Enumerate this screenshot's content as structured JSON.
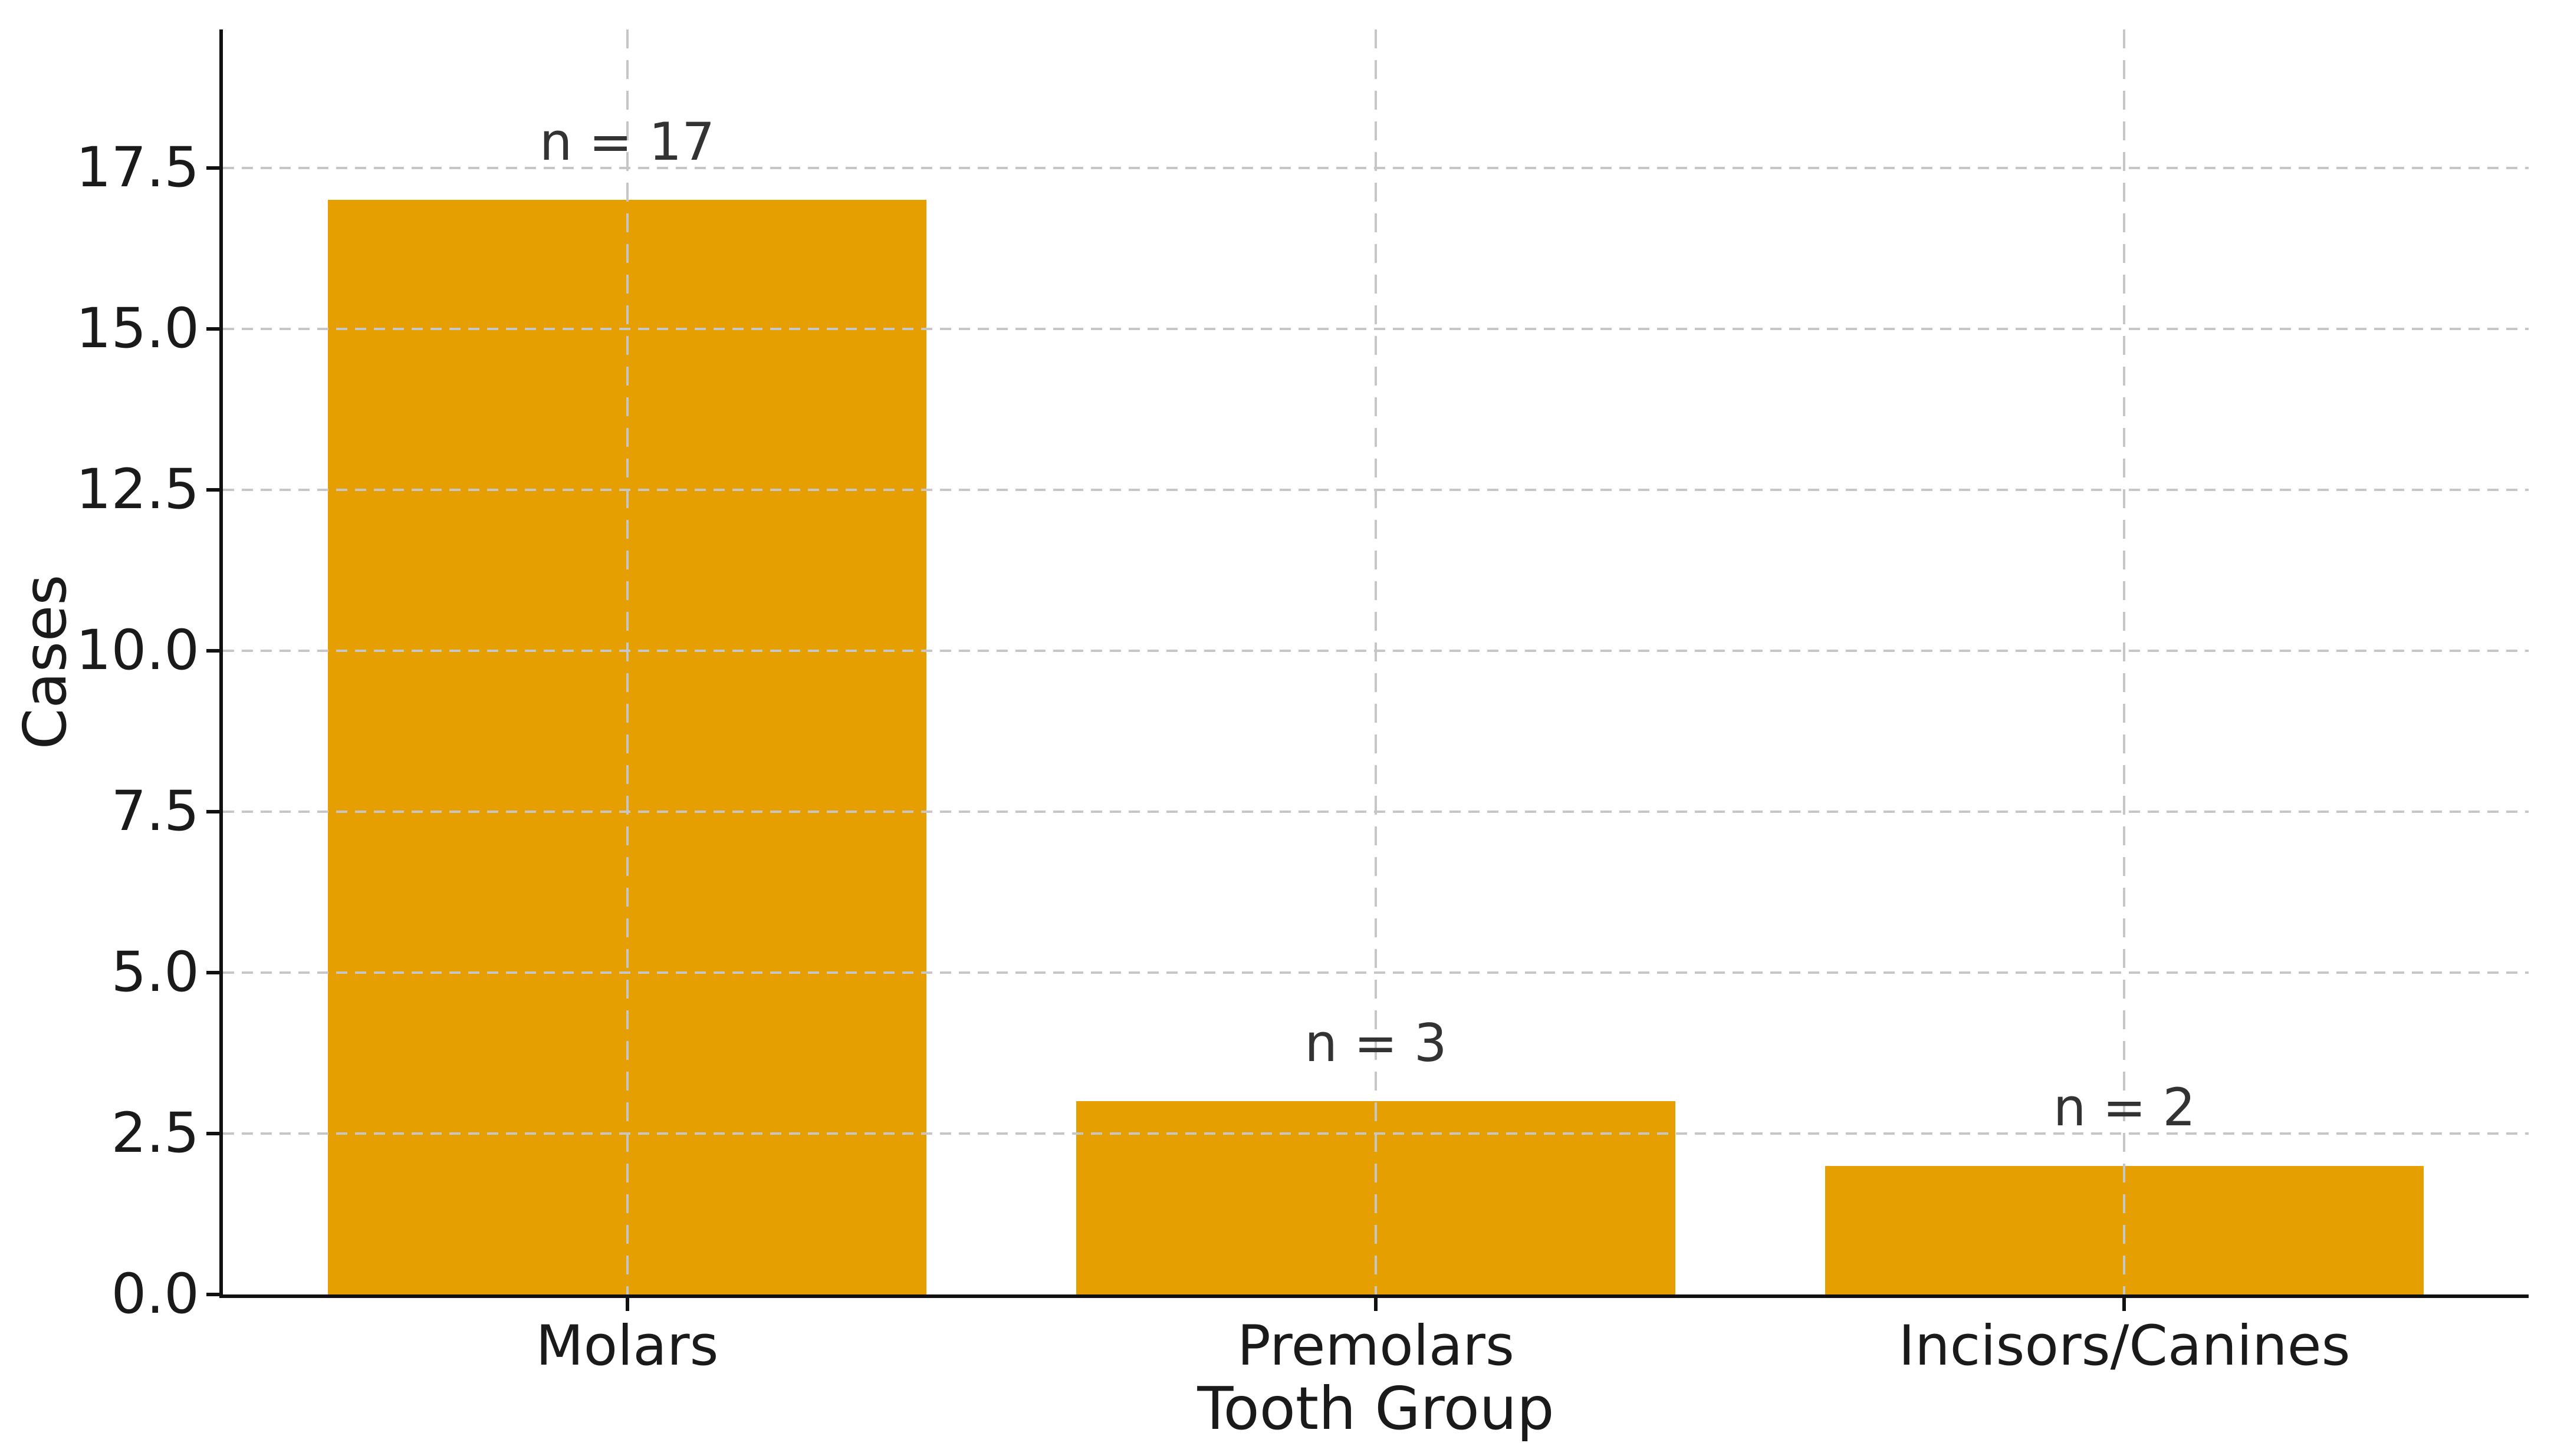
{
  "chart_data": {
    "type": "bar",
    "categories": [
      "Molars",
      "Premolars",
      "Incisors/Canines"
    ],
    "values": [
      17,
      3,
      2
    ],
    "bar_labels": [
      "n = 17",
      "n = 3",
      "n = 2"
    ],
    "xlabel": "Tooth Group",
    "ylabel": "Cases",
    "yticks": [
      0.0,
      2.5,
      5.0,
      7.5,
      10.0,
      12.5,
      15.0,
      17.5
    ],
    "ytick_labels": [
      "0.0",
      "2.5",
      "5.0",
      "7.5",
      "10.0",
      "12.5",
      "15.0",
      "17.5"
    ],
    "ylim": [
      0,
      19.65
    ],
    "xlim_units": [
      -0.54,
      2.54
    ],
    "bar_width_units": 0.8,
    "bar_label_offset_units": 0.5,
    "bar_color": "#E69F00",
    "grid": "dashed",
    "grid_color": "#c6c6c6",
    "spine_color": "#111111",
    "text_color": "#1a1a1a",
    "annotation_color": "#333333",
    "legend": "none",
    "title": ""
  }
}
